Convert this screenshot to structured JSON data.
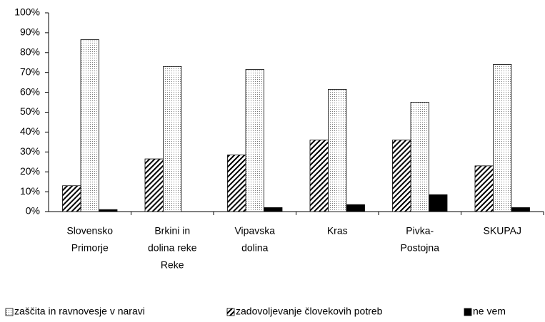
{
  "chart_data": {
    "type": "bar",
    "categories": [
      [
        "Slovensko",
        "Primorje"
      ],
      [
        "Brkini in",
        "dolina reke",
        "Reke"
      ],
      [
        "Vipavska",
        "dolina"
      ],
      [
        "Kras"
      ],
      [
        "Pivka-",
        "Postojna"
      ],
      [
        "SKUPAJ"
      ]
    ],
    "series": [
      {
        "name": "zaščita in ravnovesje v naravi",
        "values": [
          86.5,
          73,
          71.5,
          61.5,
          55,
          74
        ]
      },
      {
        "name": "zadovoljevanje človekovih potreb",
        "values": [
          13,
          26.5,
          28.5,
          36,
          36,
          23
        ]
      },
      {
        "name": "ne vem",
        "color": "#000000",
        "values": [
          1,
          0,
          2,
          3.5,
          8.5,
          2
        ]
      }
    ],
    "ylim": [
      0,
      100
    ],
    "yticks": [
      {
        "value": 0,
        "label": "0%"
      },
      {
        "value": 10,
        "label": "10%"
      },
      {
        "value": 20,
        "label": "20%"
      },
      {
        "value": 30,
        "label": "30%"
      },
      {
        "value": 40,
        "label": "40%"
      },
      {
        "value": 50,
        "label": "50%"
      },
      {
        "value": 60,
        "label": "60%"
      },
      {
        "value": 70,
        "label": "70%"
      },
      {
        "value": 80,
        "label": "80%"
      },
      {
        "value": 90,
        "label": "90%"
      },
      {
        "value": 100,
        "label": "100%"
      }
    ],
    "legend": "bottom"
  }
}
